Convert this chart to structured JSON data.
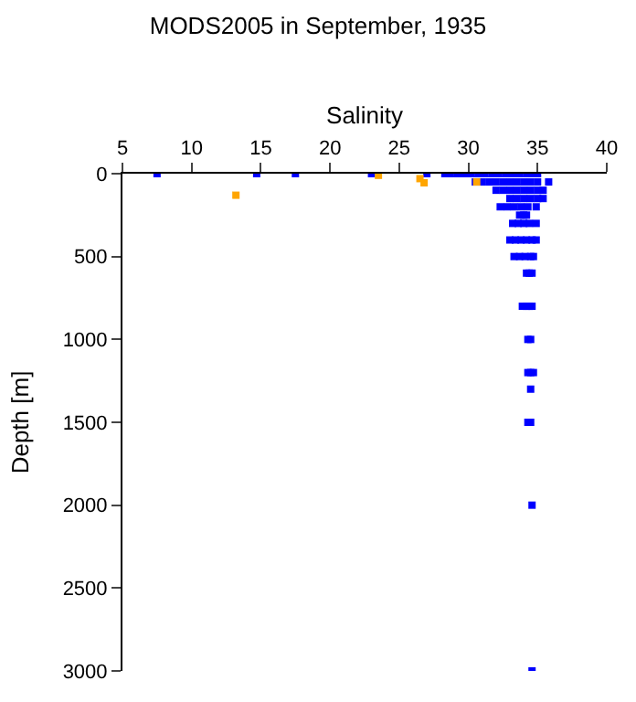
{
  "chart_data": {
    "type": "scatter",
    "title": "MODS2005 in September, 1935",
    "xlabel": "Salinity",
    "ylabel": "Depth [m]",
    "xlim": [
      5,
      40
    ],
    "xticks": [
      5,
      10,
      15,
      20,
      25,
      30,
      35,
      40
    ],
    "ylim": [
      3000,
      0
    ],
    "yticks": [
      0,
      500,
      1000,
      1500,
      2000,
      2500,
      3000
    ],
    "legend": false,
    "marker": "square",
    "series": [
      {
        "color": "#0000ff",
        "x": [
          7.5,
          14.7,
          17.5,
          23,
          27,
          28.3,
          28.7,
          29.2,
          29.7,
          30.2,
          30.7,
          31.2,
          31.7,
          32.2,
          32.7,
          33.2,
          33.7,
          34.2,
          34.7,
          35,
          30.5,
          31,
          31.5,
          32,
          32.5,
          33,
          33.5,
          34,
          34.5,
          35,
          35.8,
          32,
          32.5,
          33,
          33.5,
          34,
          34.5,
          35,
          35.4,
          33,
          33.5,
          34,
          34.5,
          35,
          35.4,
          32.3,
          32.8,
          33.3,
          33.8,
          34.3,
          34.9,
          33.7,
          34,
          34.2,
          33.2,
          33.6,
          34,
          34.4,
          34.9,
          33,
          33.4,
          33.8,
          34.2,
          34.6,
          34.9,
          33.3,
          33.7,
          34.1,
          34.5,
          34.7,
          34.2,
          34.4,
          34.6,
          33.9,
          34.2,
          34.4,
          34.6,
          34.3,
          34.5,
          34.3,
          34.5,
          34.7,
          34.5,
          34.3,
          34.5,
          34.6,
          34.6
        ],
        "values": [
          0,
          0,
          0,
          0,
          0,
          0,
          0,
          0,
          0,
          0,
          0,
          0,
          0,
          0,
          0,
          0,
          0,
          0,
          0,
          0,
          50,
          50,
          50,
          50,
          50,
          50,
          50,
          50,
          50,
          50,
          50,
          100,
          100,
          100,
          100,
          100,
          100,
          100,
          100,
          150,
          150,
          150,
          150,
          150,
          150,
          200,
          200,
          200,
          200,
          200,
          200,
          250,
          250,
          250,
          300,
          300,
          300,
          300,
          300,
          400,
          400,
          400,
          400,
          400,
          400,
          500,
          500,
          500,
          500,
          500,
          600,
          600,
          600,
          800,
          800,
          800,
          800,
          1000,
          1000,
          1200,
          1200,
          1200,
          1300,
          1500,
          1500,
          2000,
          3000
        ]
      },
      {
        "color": "#ffa500",
        "x": [
          23.5,
          13.2,
          26.5,
          26.8,
          30.6
        ],
        "values": [
          10,
          130,
          30,
          55,
          50
        ]
      }
    ]
  }
}
